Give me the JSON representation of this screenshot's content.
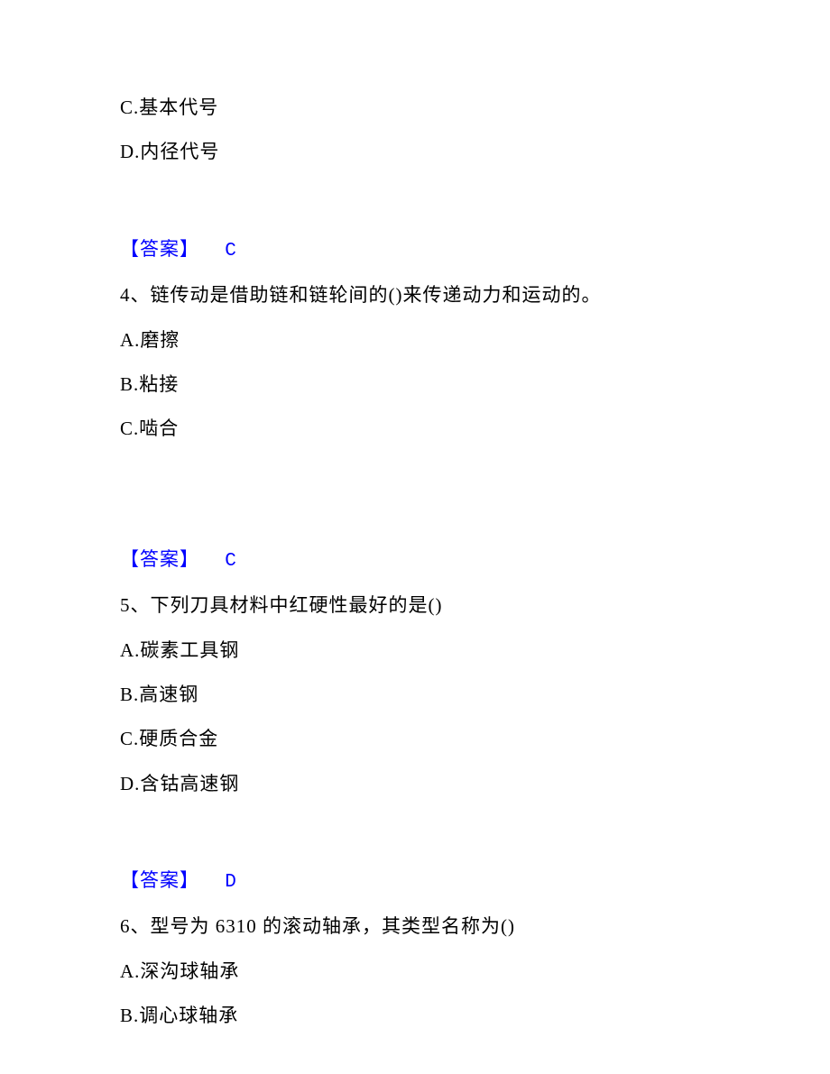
{
  "q3": {
    "option_c": "C.基本代号",
    "option_d": "D.内径代号",
    "answer_label": "【答案】",
    "answer_value": "C"
  },
  "q4": {
    "stem": "4、链传动是借助链和链轮间的()来传递动力和运动的。",
    "option_a": "A.磨擦",
    "option_b": "B.粘接",
    "option_c": "C.啮合",
    "answer_label": "【答案】",
    "answer_value": "C"
  },
  "q5": {
    "stem": "5、下列刀具材料中红硬性最好的是()",
    "option_a": "A.碳素工具钢",
    "option_b": "B.高速钢",
    "option_c": "C.硬质合金",
    "option_d": "D.含钴高速钢",
    "answer_label": "【答案】",
    "answer_value": "D"
  },
  "q6": {
    "stem": "6、型号为 6310 的滚动轴承，其类型名称为()",
    "option_a": "A.深沟球轴承",
    "option_b": "B.调心球轴承"
  }
}
